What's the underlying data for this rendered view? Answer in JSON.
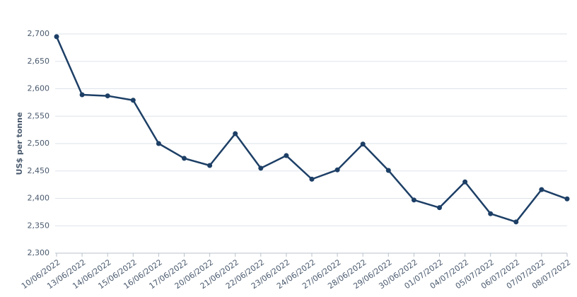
{
  "chart_data": {
    "type": "line",
    "y_label": "US$ per tonne",
    "categories": [
      "10/06/2022",
      "13/06/2022",
      "14/06/2022",
      "15/06/2022",
      "16/06/2022",
      "17/06/2022",
      "20/06/2022",
      "21/06/2022",
      "22/06/2022",
      "23/06/2022",
      "24/06/2022",
      "27/06/2022",
      "28/06/2022",
      "29/06/2022",
      "30/06/2022",
      "01/07/2022",
      "04/07/2022",
      "05/07/2022",
      "06/07/2022",
      "07/07/2022",
      "08/07/2022"
    ],
    "values": [
      2695,
      2589,
      2587,
      2579,
      2500,
      2473,
      2460,
      2518,
      2455,
      2478,
      2435,
      2452,
      2499,
      2451,
      2397,
      2383,
      2430,
      2372,
      2357,
      2416,
      2399
    ],
    "color": "#1d3f66",
    "ylim": [
      2300,
      2700
    ],
    "yticks": [
      {
        "value": 2300,
        "label": "2,300"
      },
      {
        "value": 2350,
        "label": "2,350"
      },
      {
        "value": 2400,
        "label": "2,400"
      },
      {
        "value": 2450,
        "label": "2,450"
      },
      {
        "value": 2500,
        "label": "2,500"
      },
      {
        "value": 2550,
        "label": "2,550"
      },
      {
        "value": 2600,
        "label": "2,600"
      },
      {
        "value": 2650,
        "label": "2,650"
      },
      {
        "value": 2700,
        "label": "2,700"
      }
    ],
    "grid": true
  }
}
